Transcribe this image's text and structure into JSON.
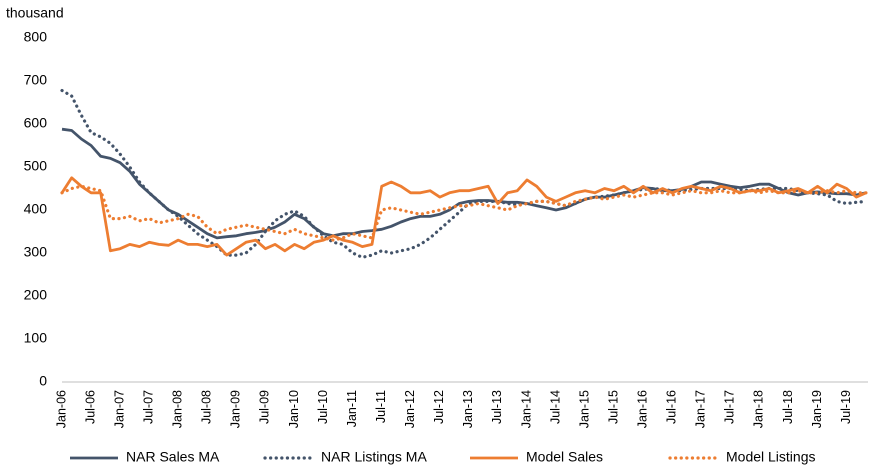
{
  "chart_data": {
    "type": "line",
    "y_label": "thousand",
    "categories": [
      "Jan-06",
      null,
      null,
      "Jul-06",
      null,
      null,
      "Jan-07",
      null,
      null,
      "Jul-07",
      null,
      null,
      "Jan-08",
      null,
      null,
      "Jul-08",
      null,
      null,
      "Jan-09",
      null,
      null,
      "Jul-09",
      null,
      null,
      "Jan-10",
      null,
      null,
      "Jul-10",
      null,
      null,
      "Jan-11",
      null,
      null,
      "Jul-11",
      null,
      null,
      "Jan-12",
      null,
      null,
      "Jul-12",
      null,
      null,
      "Jan-13",
      null,
      null,
      "Jul-13",
      null,
      null,
      "Jan-14",
      null,
      null,
      "Jul-14",
      null,
      null,
      "Jan-15",
      null,
      null,
      "Jul-15",
      null,
      null,
      "Jan-16",
      null,
      null,
      "Jul-16",
      null,
      null,
      "Jan-17",
      null,
      null,
      "Jul-17",
      null,
      null,
      "Jan-18",
      null,
      null,
      "Jul-18",
      null,
      null,
      "Jan-19",
      null,
      null,
      "Jul-19",
      null,
      null
    ],
    "ylim": [
      0,
      800
    ],
    "yticks": [
      0,
      100,
      200,
      300,
      400,
      500,
      600,
      700,
      800
    ],
    "grid": false,
    "legend": "bottom",
    "series": [
      {
        "name": "NAR Sales MA",
        "color": "#44546a",
        "style": "solid",
        "values": [
          588,
          585,
          565,
          550,
          525,
          520,
          510,
          490,
          460,
          440,
          420,
          400,
          390,
          375,
          360,
          345,
          335,
          338,
          340,
          345,
          348,
          352,
          360,
          372,
          390,
          380,
          360,
          345,
          340,
          345,
          345,
          350,
          352,
          355,
          362,
          372,
          380,
          385,
          385,
          390,
          400,
          415,
          420,
          422,
          422,
          420,
          418,
          418,
          415,
          410,
          405,
          400,
          405,
          415,
          425,
          430,
          430,
          435,
          440,
          445,
          452,
          450,
          445,
          445,
          448,
          455,
          465,
          465,
          460,
          455,
          452,
          455,
          460,
          460,
          450,
          440,
          435,
          440,
          442,
          440,
          438,
          438,
          435,
          440
        ]
      },
      {
        "name": "NAR Listings MA",
        "color": "#44546a",
        "style": "dotted",
        "values": [
          678,
          665,
          620,
          580,
          570,
          555,
          530,
          500,
          465,
          440,
          420,
          400,
          385,
          365,
          345,
          330,
          315,
          295,
          295,
          300,
          320,
          350,
          375,
          390,
          398,
          385,
          360,
          340,
          325,
          320,
          300,
          290,
          295,
          305,
          300,
          305,
          310,
          320,
          335,
          355,
          375,
          395,
          415,
          420,
          420,
          420,
          415,
          412,
          415,
          420,
          420,
          415,
          410,
          415,
          425,
          430,
          432,
          435,
          440,
          445,
          448,
          450,
          448,
          445,
          445,
          448,
          450,
          450,
          450,
          450,
          448,
          445,
          448,
          450,
          450,
          450,
          445,
          440,
          438,
          435,
          420,
          415,
          418,
          420
        ]
      },
      {
        "name": "Model Sales",
        "color": "#ed7d31",
        "style": "solid",
        "values": [
          440,
          475,
          455,
          440,
          440,
          305,
          310,
          320,
          315,
          325,
          320,
          318,
          330,
          320,
          320,
          315,
          320,
          295,
          310,
          325,
          330,
          310,
          320,
          305,
          320,
          310,
          325,
          330,
          340,
          330,
          325,
          315,
          320,
          455,
          465,
          455,
          440,
          440,
          445,
          430,
          440,
          445,
          445,
          450,
          455,
          415,
          440,
          445,
          470,
          455,
          430,
          420,
          430,
          440,
          445,
          440,
          450,
          445,
          455,
          440,
          455,
          440,
          450,
          440,
          450,
          455,
          450,
          445,
          455,
          450,
          440,
          445,
          445,
          450,
          440,
          445,
          450,
          440,
          455,
          440,
          460,
          450,
          430,
          440
        ]
      },
      {
        "name": "Model Listings",
        "color": "#ed7d31",
        "style": "dotted",
        "values": [
          440,
          450,
          455,
          450,
          445,
          380,
          380,
          385,
          375,
          380,
          370,
          375,
          380,
          390,
          385,
          360,
          345,
          355,
          360,
          365,
          360,
          355,
          350,
          345,
          355,
          345,
          340,
          335,
          330,
          335,
          345,
          340,
          335,
          400,
          405,
          400,
          395,
          390,
          395,
          400,
          405,
          410,
          410,
          415,
          410,
          405,
          400,
          410,
          415,
          420,
          420,
          415,
          410,
          420,
          425,
          430,
          425,
          430,
          435,
          430,
          435,
          440,
          440,
          435,
          440,
          445,
          440,
          440,
          445,
          440,
          440,
          445,
          440,
          445,
          440,
          440,
          445,
          440,
          440,
          445,
          440,
          445,
          440,
          440
        ]
      }
    ]
  }
}
